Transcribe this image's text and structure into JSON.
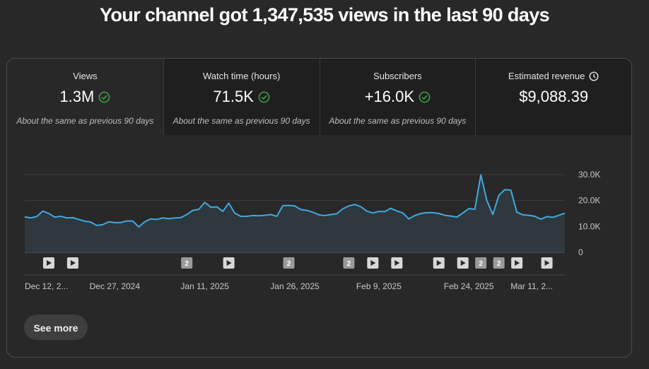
{
  "headline": "Your channel got 1,347,535 views in the last 90 days",
  "tabs": [
    {
      "label": "Views",
      "value": "1.3M",
      "sub": "About the same as previous 90 days",
      "check": true
    },
    {
      "label": "Watch time (hours)",
      "value": "71.5K",
      "sub": "About the same as previous 90 days",
      "check": true
    },
    {
      "label": "Subscribers",
      "value": "+16.0K",
      "sub": "About the same as previous 90 days",
      "check": true
    },
    {
      "label": "Estimated revenue",
      "value": "$9,088.39",
      "sub": "",
      "check": false,
      "label_icon": "clock-icon"
    }
  ],
  "see_more": "See more",
  "colors": {
    "line": "#41a9dd",
    "fill": "#2f3a40",
    "check": "#3ea649"
  },
  "chart_data": {
    "type": "area",
    "ylim": [
      0,
      30000
    ],
    "yticks": [
      0,
      10000,
      20000,
      30000
    ],
    "ytick_labels": [
      "0",
      "10.0K",
      "20.0K",
      "30.0K"
    ],
    "xtick_labels": [
      "Dec 12, 2...",
      "Dec 27, 2024",
      "Jan 11, 2025",
      "Jan 26, 2025",
      "Feb 9, 2025",
      "Feb 24, 2025",
      "Mar 11, 2..."
    ],
    "xtick_index": [
      0,
      15,
      30,
      45,
      59,
      74,
      88
    ],
    "values": [
      13700,
      13300,
      13800,
      15900,
      15000,
      13600,
      13900,
      13300,
      13400,
      12700,
      12000,
      11700,
      10400,
      10700,
      11800,
      11500,
      11500,
      12100,
      12100,
      9800,
      11800,
      12900,
      12700,
      13300,
      13000,
      13300,
      13400,
      14600,
      16200,
      16600,
      19300,
      17400,
      17600,
      15800,
      19000,
      15100,
      13900,
      13900,
      14200,
      14100,
      14300,
      14600,
      13900,
      18000,
      18100,
      17900,
      16500,
      16200,
      15500,
      14500,
      14200,
      14600,
      14900,
      16800,
      17900,
      18500,
      17600,
      15900,
      15200,
      15800,
      15700,
      17000,
      16000,
      15200,
      12900,
      14200,
      15000,
      15300,
      15300,
      15000,
      14300,
      14000,
      13600,
      15200,
      16900,
      16600,
      29900,
      20000,
      14600,
      22000,
      24200,
      24000,
      15500,
      14500,
      14300,
      13900,
      12800,
      13800,
      13500,
      14300,
      15100
    ],
    "annotations": [
      {
        "index": 4,
        "label": ""
      },
      {
        "index": 8,
        "label": ""
      },
      {
        "index": 27,
        "label": "2"
      },
      {
        "index": 34,
        "label": ""
      },
      {
        "index": 44,
        "label": "2"
      },
      {
        "index": 54,
        "label": "2"
      },
      {
        "index": 58,
        "label": ""
      },
      {
        "index": 62,
        "label": ""
      },
      {
        "index": 69,
        "label": ""
      },
      {
        "index": 73,
        "label": ""
      },
      {
        "index": 76,
        "label": "2"
      },
      {
        "index": 79,
        "label": "2"
      },
      {
        "index": 82,
        "label": ""
      },
      {
        "index": 87,
        "label": ""
      }
    ]
  }
}
